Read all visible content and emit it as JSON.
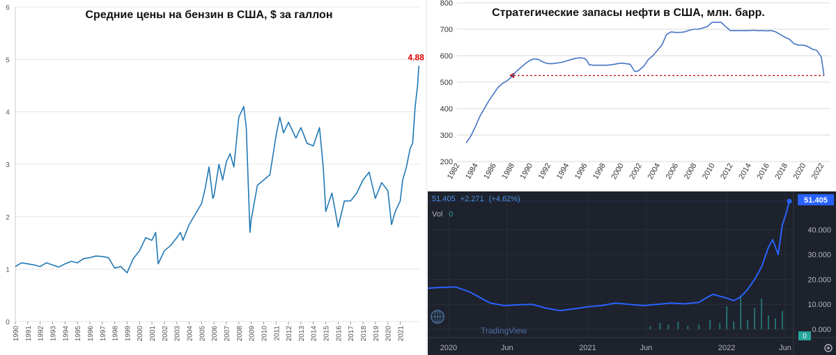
{
  "chart_data": [
    {
      "type": "line",
      "title": "Средние цены на бензин в США, $ за галлон",
      "ylim": [
        0,
        6
      ],
      "y_ticks": [
        0,
        1,
        2,
        3,
        4,
        5,
        6
      ],
      "x_ticks": [
        "1990",
        "1991",
        "1992",
        "1993",
        "1994",
        "1995",
        "1996",
        "1997",
        "1998",
        "1999",
        "2000",
        "2001",
        "2002",
        "2003",
        "2004",
        "2005",
        "2006",
        "2007",
        "2008",
        "2009",
        "2010",
        "2011",
        "2012",
        "2013",
        "2014",
        "2015",
        "2016",
        "2017",
        "2018",
        "2019",
        "2020",
        "2021"
      ],
      "last_value_label": "4.88",
      "series": [
        {
          "color": "#1f77b4",
          "x": [
            1990.0,
            1990.5,
            1991.0,
            1991.5,
            1992.0,
            1992.5,
            1993.0,
            1993.5,
            1994.0,
            1994.5,
            1995.0,
            1995.5,
            1996.0,
            1996.5,
            1997.0,
            1997.5,
            1998.0,
            1998.5,
            1999.0,
            1999.5,
            2000.0,
            2000.5,
            2001.0,
            2001.3,
            2001.5,
            2002.0,
            2002.5,
            2003.0,
            2003.3,
            2003.5,
            2004.0,
            2004.5,
            2005.0,
            2005.3,
            2005.6,
            2005.9,
            2006.0,
            2006.4,
            2006.7,
            2007.0,
            2007.3,
            2007.6,
            2008.0,
            2008.4,
            2008.6,
            2008.9,
            2009.0,
            2009.5,
            2010.0,
            2010.5,
            2011.0,
            2011.3,
            2011.6,
            2012.0,
            2012.3,
            2012.6,
            2013.0,
            2013.5,
            2014.0,
            2014.5,
            2014.8,
            2015.0,
            2015.5,
            2016.0,
            2016.5,
            2017.0,
            2017.5,
            2018.0,
            2018.5,
            2019.0,
            2019.5,
            2020.0,
            2020.3,
            2020.6,
            2021.0,
            2021.2,
            2021.5,
            2021.8,
            2022.0,
            2022.2,
            2022.4,
            2022.5
          ],
          "y": [
            1.05,
            1.12,
            1.1,
            1.08,
            1.05,
            1.12,
            1.08,
            1.04,
            1.1,
            1.15,
            1.12,
            1.2,
            1.22,
            1.25,
            1.24,
            1.22,
            1.02,
            1.05,
            0.93,
            1.2,
            1.35,
            1.6,
            1.55,
            1.7,
            1.1,
            1.35,
            1.45,
            1.6,
            1.7,
            1.55,
            1.85,
            2.05,
            2.25,
            2.55,
            2.95,
            2.35,
            2.4,
            3.0,
            2.7,
            3.05,
            3.2,
            2.95,
            3.9,
            4.1,
            3.7,
            1.7,
            1.95,
            2.6,
            2.7,
            2.8,
            3.55,
            3.9,
            3.6,
            3.8,
            3.65,
            3.5,
            3.7,
            3.4,
            3.35,
            3.7,
            2.95,
            2.1,
            2.45,
            1.8,
            2.3,
            2.3,
            2.45,
            2.7,
            2.85,
            2.35,
            2.65,
            2.5,
            1.85,
            2.1,
            2.3,
            2.7,
            2.95,
            3.3,
            3.4,
            4.1,
            4.5,
            4.88
          ]
        }
      ]
    },
    {
      "type": "line",
      "title": "Стратегические запасы нефти в США, млн. барр.",
      "ylim": [
        200,
        800
      ],
      "y_ticks": [
        200,
        300,
        400,
        500,
        600,
        700,
        800
      ],
      "x_ticks": [
        "1982",
        "1984",
        "1986",
        "1988",
        "1990",
        "1992",
        "1994",
        "1996",
        "1998",
        "2000",
        "2002",
        "2004",
        "2006",
        "2008",
        "2010",
        "2012",
        "2014",
        "2016",
        "2018",
        "2020",
        "2022"
      ],
      "reference_line": 525,
      "series": [
        {
          "color": "#4472c4",
          "x": [
            1983.0,
            1983.5,
            1984.0,
            1984.5,
            1985.0,
            1985.5,
            1986.0,
            1986.5,
            1987.0,
            1987.5,
            1988.0,
            1988.5,
            1989.0,
            1989.5,
            1990.0,
            1990.4,
            1991.0,
            1991.5,
            1992.0,
            1992.5,
            1993.0,
            1993.5,
            1994.0,
            1994.5,
            1995.0,
            1995.5,
            1996.0,
            1996.3,
            1996.5,
            1997.0,
            1997.5,
            1998.0,
            1998.5,
            1999.0,
            1999.5,
            2000.0,
            2000.5,
            2001.0,
            2001.5,
            2001.8,
            2002.0,
            2002.5,
            2003.0,
            2003.5,
            2004.0,
            2004.5,
            2005.0,
            2005.5,
            2006.0,
            2006.5,
            2007.0,
            2007.5,
            2008.0,
            2008.5,
            2009.0,
            2009.5,
            2010.0,
            2010.5,
            2011.0,
            2011.5,
            2012.0,
            2012.5,
            2013.0,
            2013.5,
            2014.0,
            2014.5,
            2015.0,
            2015.5,
            2016.0,
            2016.5,
            2017.0,
            2017.5,
            2018.0,
            2018.5,
            2019.0,
            2019.5,
            2020.0,
            2020.5,
            2021.0,
            2021.5,
            2022.0,
            2022.3
          ],
          "y": [
            270,
            295,
            330,
            370,
            400,
            430,
            455,
            480,
            495,
            505,
            520,
            540,
            555,
            570,
            582,
            588,
            585,
            575,
            570,
            570,
            572,
            575,
            580,
            585,
            590,
            592,
            590,
            580,
            566,
            564,
            564,
            564,
            564,
            566,
            569,
            572,
            570,
            568,
            541,
            541,
            545,
            560,
            585,
            600,
            620,
            640,
            680,
            690,
            688,
            688,
            690,
            696,
            700,
            700,
            705,
            710,
            726,
            726,
            726,
            710,
            695,
            695,
            695,
            695,
            695,
            696,
            695,
            695,
            694,
            695,
            690,
            680,
            670,
            662,
            645,
            640,
            640,
            635,
            625,
            620,
            595,
            525
          ]
        }
      ]
    },
    {
      "type": "line",
      "header": {
        "last": "51.405",
        "change": "+2.271",
        "change_pct": "(+4.62%)",
        "vol_label": "Vol",
        "vol_value": "0"
      },
      "last_price_label": "51.405",
      "vol_badge": "0",
      "watermark": "TradingView",
      "y_ticks": [
        "40.000",
        "30.000",
        "20.000",
        "10.000",
        "0.000"
      ],
      "y_values": [
        40,
        30,
        20,
        10,
        0
      ],
      "ylim": [
        0,
        52
      ],
      "x_ticks": [
        "2020",
        "Jun",
        "2021",
        "Jun",
        "2022",
        "Jun"
      ],
      "x_tick_positions": [
        2020.0,
        2020.42,
        2021.0,
        2021.42,
        2022.0,
        2022.42
      ],
      "series": [
        {
          "color": "#2962ff",
          "x": [
            2019.85,
            2019.95,
            2020.05,
            2020.15,
            2020.25,
            2020.3,
            2020.4,
            2020.5,
            2020.6,
            2020.7,
            2020.8,
            2020.9,
            2021.0,
            2021.1,
            2021.2,
            2021.3,
            2021.4,
            2021.5,
            2021.6,
            2021.7,
            2021.8,
            2021.85,
            2021.9,
            2022.0,
            2022.05,
            2022.1,
            2022.15,
            2022.2,
            2022.25,
            2022.3,
            2022.33,
            2022.37,
            2022.4,
            2022.43,
            2022.45
          ],
          "y": [
            16.5,
            16.8,
            17,
            15,
            12,
            10.5,
            9.5,
            9.8,
            10,
            8.5,
            7.5,
            8.2,
            9,
            9.5,
            10.5,
            10,
            9.5,
            10,
            10.5,
            10.2,
            10.8,
            12.5,
            14,
            12.5,
            11.5,
            13,
            16,
            20,
            25,
            33,
            36,
            30,
            42,
            47,
            51.405
          ]
        }
      ],
      "volume_bars": {
        "x": [
          2021.45,
          2021.52,
          2021.58,
          2021.65,
          2021.72,
          2021.8,
          2021.88,
          2021.95,
          2022.0,
          2022.05,
          2022.1,
          2022.15,
          2022.2,
          2022.25,
          2022.3,
          2022.35,
          2022.4
        ],
        "v": [
          2,
          4,
          3,
          5,
          2,
          3,
          6,
          4,
          15,
          5,
          22,
          6,
          14,
          20,
          9,
          7,
          12
        ]
      }
    }
  ]
}
